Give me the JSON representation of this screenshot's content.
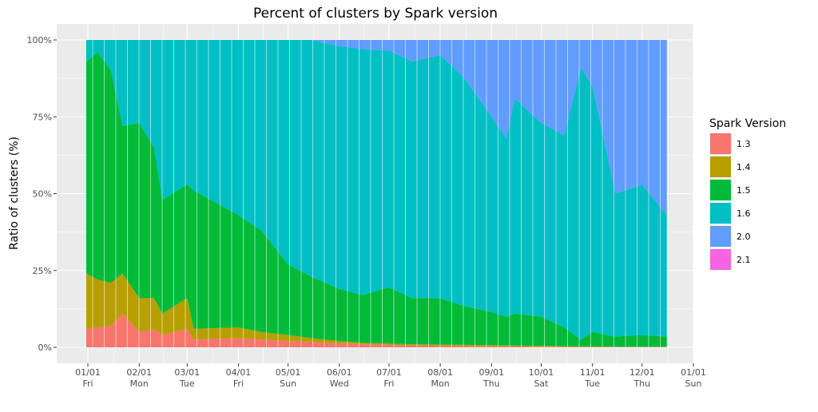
{
  "chart_data": {
    "type": "area",
    "stacked": true,
    "normalized": true,
    "title": "Percent of clusters by Spark version",
    "xlabel": "",
    "ylabel": "Ratio of clusters (%)",
    "ylim": [
      0,
      100
    ],
    "xlim": [
      "2016-01-01",
      "2017-01-01"
    ],
    "grid": true,
    "legend": {
      "title": "Spark Version",
      "position": "right"
    },
    "y_ticks": [
      "0%",
      "25%",
      "50%",
      "75%",
      "100%"
    ],
    "y_tick_values": [
      0,
      25,
      50,
      75,
      100
    ],
    "x_ticks": [
      {
        "date": "2016-01-01",
        "label": "01/01",
        "sub": "Fri"
      },
      {
        "date": "2016-02-01",
        "label": "02/01",
        "sub": "Mon"
      },
      {
        "date": "2016-03-01",
        "label": "03/01",
        "sub": "Tue"
      },
      {
        "date": "2016-04-01",
        "label": "04/01",
        "sub": "Fri"
      },
      {
        "date": "2016-05-01",
        "label": "05/01",
        "sub": "Sun"
      },
      {
        "date": "2016-06-01",
        "label": "06/01",
        "sub": "Wed"
      },
      {
        "date": "2016-07-01",
        "label": "07/01",
        "sub": "Fri"
      },
      {
        "date": "2016-08-01",
        "label": "08/01",
        "sub": "Mon"
      },
      {
        "date": "2016-09-01",
        "label": "09/01",
        "sub": "Thu"
      },
      {
        "date": "2016-10-01",
        "label": "10/01",
        "sub": "Sat"
      },
      {
        "date": "2016-11-01",
        "label": "11/01",
        "sub": "Tue"
      },
      {
        "date": "2016-12-01",
        "label": "12/01",
        "sub": "Thu"
      },
      {
        "date": "2017-01-01",
        "label": "01/01",
        "sub": "Sun"
      }
    ],
    "x": [
      "2016-01-01",
      "2016-01-07",
      "2016-01-15",
      "2016-01-22",
      "2016-02-01",
      "2016-02-10",
      "2016-02-15",
      "2016-03-01",
      "2016-03-05",
      "2016-04-01",
      "2016-04-15",
      "2016-05-01",
      "2016-05-15",
      "2016-06-01",
      "2016-06-15",
      "2016-07-01",
      "2016-07-15",
      "2016-08-01",
      "2016-08-15",
      "2016-09-01",
      "2016-09-10",
      "2016-09-15",
      "2016-10-01",
      "2016-10-15",
      "2016-10-25",
      "2016-11-01",
      "2016-11-15",
      "2016-12-01",
      "2016-12-15"
    ],
    "series": [
      {
        "name": "1.3",
        "color": "#F8766D",
        "values": [
          6,
          6.5,
          7,
          11,
          5,
          6,
          4,
          6,
          2.5,
          3,
          2.5,
          2,
          1.7,
          1.3,
          1,
          0.8,
          0.6,
          0.5,
          0.4,
          0.3,
          0.3,
          0.3,
          0.2,
          0.2,
          0.1,
          0.1,
          0.1,
          0.1,
          0.1
        ]
      },
      {
        "name": "1.4",
        "color": "#B79F00",
        "values": [
          18,
          15.5,
          14,
          13,
          11,
          10,
          7,
          10,
          3.5,
          3.5,
          2.5,
          2,
          1.3,
          0.7,
          0.5,
          0.4,
          0.4,
          0.4,
          0.4,
          0.4,
          0.3,
          0.3,
          0.3,
          0.2,
          0.2,
          0.2,
          0.1,
          0.1,
          0.1
        ]
      },
      {
        "name": "1.5",
        "color": "#00BA38",
        "values": [
          69,
          74,
          69,
          48,
          57,
          49,
          37,
          37,
          45,
          36.5,
          33,
          23,
          20,
          17,
          15.5,
          18.3,
          15,
          15.1,
          12.7,
          10.8,
          9.4,
          10.4,
          9.5,
          6.1,
          2.2,
          4.7,
          3.3,
          3.8,
          3.3
        ]
      },
      {
        "name": "1.6",
        "color": "#00BFC4",
        "values": [
          7,
          4,
          10,
          28,
          27,
          35,
          52,
          47,
          49,
          57,
          62,
          73,
          77,
          79,
          80,
          77,
          77,
          79,
          74.5,
          63.5,
          58,
          70,
          63,
          62.5,
          88.5,
          80,
          46.5,
          49,
          39.5
        ]
      },
      {
        "name": "2.0",
        "color": "#619CFF",
        "values": [
          0,
          0,
          0,
          0,
          0,
          0,
          0,
          0,
          0,
          0,
          0,
          0,
          0,
          2,
          3,
          3.5,
          7,
          5,
          12,
          25,
          32,
          19,
          27,
          31,
          9,
          15,
          50,
          47,
          57
        ]
      },
      {
        "name": "2.1",
        "color": "#F564E3",
        "values": [
          0,
          0,
          0,
          0,
          0,
          0,
          0,
          0,
          0,
          0,
          0,
          0,
          0,
          0,
          0,
          0,
          0,
          0,
          0,
          0,
          0,
          0,
          0,
          0,
          0,
          0,
          0,
          0,
          0
        ]
      }
    ]
  }
}
